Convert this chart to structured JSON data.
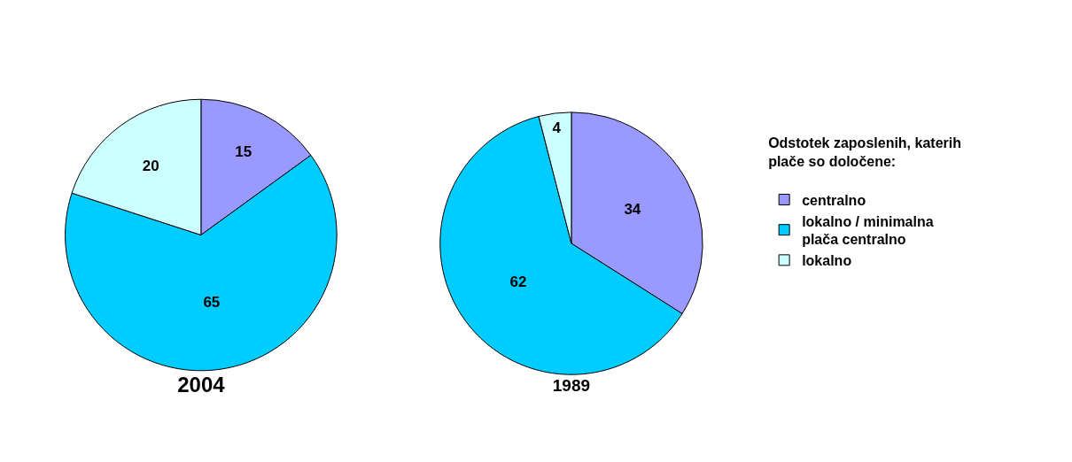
{
  "chart_data": [
    {
      "type": "pie",
      "title": "2004",
      "categories": [
        "centralno",
        "lokalno / minimalna plača centralno",
        "lokalno"
      ],
      "values": [
        15,
        65,
        20
      ],
      "colors": [
        "#9999ff",
        "#00ccff",
        "#ccffff"
      ],
      "data_labels": true,
      "legend": "right",
      "legend_title": "Odstotek zaposlenih, katerih plače so določene:"
    },
    {
      "type": "pie",
      "title": "1989",
      "categories": [
        null,
        null,
        null
      ],
      "values": [
        34,
        62,
        4
      ],
      "colors": [
        "#9999ff",
        "#00ccff",
        "#ccffff"
      ],
      "data_labels": true
    }
  ]
}
